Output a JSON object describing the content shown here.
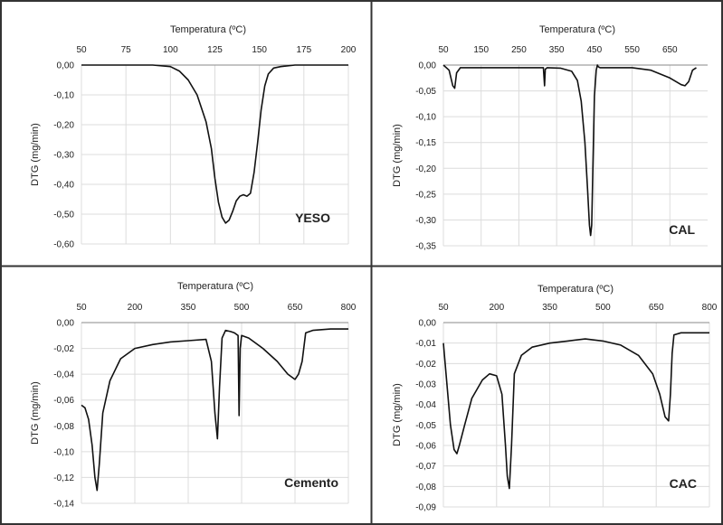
{
  "chart_data": [
    {
      "type": "line",
      "panel_label": "YESO",
      "xlabel": "Temperatura (ºC)",
      "ylabel": "DTG (mg/min)",
      "xlim": [
        50,
        200
      ],
      "ylim": [
        -0.6,
        0.0
      ],
      "x_ticks": [
        "50",
        "75",
        "100",
        "125",
        "150",
        "175",
        "200"
      ],
      "y_ticks": [
        "0,00",
        "-0,10",
        "-0,20",
        "-0,30",
        "-0,40",
        "-0,50",
        "-0,60"
      ],
      "grid": true,
      "series": [
        {
          "x": [
            50,
            70,
            90,
            100,
            105,
            110,
            115,
            120,
            123,
            125,
            127,
            129,
            131,
            133,
            135,
            137,
            139,
            141,
            143,
            145,
            147,
            149,
            151,
            153,
            155,
            158,
            162,
            170,
            185,
            200
          ],
          "y": [
            0.0,
            0.0,
            0.0,
            -0.005,
            -0.02,
            -0.05,
            -0.1,
            -0.19,
            -0.28,
            -0.38,
            -0.46,
            -0.51,
            -0.53,
            -0.52,
            -0.49,
            -0.455,
            -0.44,
            -0.435,
            -0.44,
            -0.43,
            -0.36,
            -0.26,
            -0.15,
            -0.07,
            -0.03,
            -0.01,
            -0.005,
            0.0,
            0.0,
            0.0
          ]
        }
      ]
    },
    {
      "type": "line",
      "panel_label": "CAL",
      "xlabel": "Temperatura (ºC)",
      "ylabel": "DTG (mg/min)",
      "xlim": [
        50,
        750
      ],
      "ylim": [
        -0.35,
        0.0
      ],
      "x_ticks": [
        "50",
        "150",
        "250",
        "350",
        "450",
        "550",
        "650"
      ],
      "y_ticks": [
        "0,00",
        "-0,05",
        "-0,10",
        "-0,15",
        "-0,20",
        "-0,25",
        "-0,30",
        "-0,35"
      ],
      "grid": true,
      "series": [
        {
          "x": [
            50,
            65,
            75,
            80,
            85,
            95,
            120,
            200,
            300,
            315,
            318,
            320,
            325,
            360,
            390,
            405,
            415,
            425,
            432,
            437,
            440,
            443,
            446,
            450,
            455,
            458,
            460,
            465,
            480,
            550,
            600,
            650,
            680,
            690,
            700,
            710,
            720
          ],
          "y": [
            0.0,
            -0.01,
            -0.04,
            -0.045,
            -0.015,
            -0.005,
            -0.005,
            -0.005,
            -0.005,
            -0.005,
            -0.04,
            -0.008,
            -0.005,
            -0.006,
            -0.012,
            -0.03,
            -0.07,
            -0.15,
            -0.24,
            -0.31,
            -0.33,
            -0.31,
            -0.2,
            -0.06,
            -0.01,
            0.0,
            -0.003,
            -0.005,
            -0.005,
            -0.005,
            -0.01,
            -0.025,
            -0.038,
            -0.04,
            -0.032,
            -0.01,
            -0.005
          ]
        }
      ]
    },
    {
      "type": "line",
      "panel_label": "Cemento",
      "xlabel": "Temperatura (ºC)",
      "ylabel": "DTG (mg/min)",
      "xlim": [
        50,
        800
      ],
      "ylim": [
        -0.14,
        0.0
      ],
      "x_ticks": [
        "50",
        "200",
        "350",
        "500",
        "650",
        "800"
      ],
      "y_ticks": [
        "0,00",
        "-0,02",
        "-0,04",
        "-0,06",
        "-0,08",
        "-0,10",
        "-0,12",
        "-0,14"
      ],
      "grid": true,
      "series": [
        {
          "x": [
            50,
            60,
            70,
            80,
            88,
            94,
            100,
            110,
            130,
            160,
            200,
            250,
            300,
            350,
            400,
            415,
            425,
            432,
            438,
            445,
            455,
            470,
            480,
            490,
            493,
            496,
            500,
            520,
            560,
            600,
            630,
            650,
            660,
            670,
            680,
            700,
            750,
            800
          ],
          "y": [
            -0.064,
            -0.066,
            -0.075,
            -0.095,
            -0.12,
            -0.13,
            -0.11,
            -0.07,
            -0.045,
            -0.028,
            -0.02,
            -0.017,
            -0.015,
            -0.014,
            -0.013,
            -0.03,
            -0.07,
            -0.09,
            -0.05,
            -0.012,
            -0.006,
            -0.007,
            -0.008,
            -0.01,
            -0.072,
            -0.02,
            -0.01,
            -0.012,
            -0.02,
            -0.03,
            -0.04,
            -0.044,
            -0.04,
            -0.03,
            -0.008,
            -0.006,
            -0.005,
            -0.005
          ]
        }
      ]
    },
    {
      "type": "line",
      "panel_label": "CAC",
      "xlabel": "Temperatura (ºC)",
      "ylabel": "DTG (mg/min)",
      "xlim": [
        50,
        800
      ],
      "ylim": [
        -0.09,
        0.0
      ],
      "x_ticks": [
        "50",
        "200",
        "350",
        "500",
        "650",
        "800"
      ],
      "y_ticks": [
        "0,00",
        "-0,01",
        "-0,02",
        "-0,03",
        "-0,04",
        "-0,05",
        "-0,06",
        "-0,07",
        "-0,08",
        "-0,09"
      ],
      "grid": true,
      "series": [
        {
          "x": [
            50,
            60,
            70,
            80,
            88,
            95,
            110,
            130,
            160,
            180,
            200,
            215,
            225,
            230,
            236,
            242,
            250,
            270,
            300,
            350,
            400,
            450,
            500,
            550,
            600,
            640,
            660,
            675,
            685,
            690,
            695,
            700,
            720,
            760,
            800
          ],
          "y": [
            -0.01,
            -0.03,
            -0.05,
            -0.062,
            -0.064,
            -0.06,
            -0.05,
            -0.037,
            -0.028,
            -0.025,
            -0.026,
            -0.035,
            -0.06,
            -0.075,
            -0.081,
            -0.06,
            -0.025,
            -0.016,
            -0.012,
            -0.01,
            -0.009,
            -0.008,
            -0.009,
            -0.011,
            -0.016,
            -0.025,
            -0.035,
            -0.046,
            -0.048,
            -0.035,
            -0.015,
            -0.006,
            -0.005,
            -0.005,
            -0.005
          ]
        }
      ]
    }
  ]
}
